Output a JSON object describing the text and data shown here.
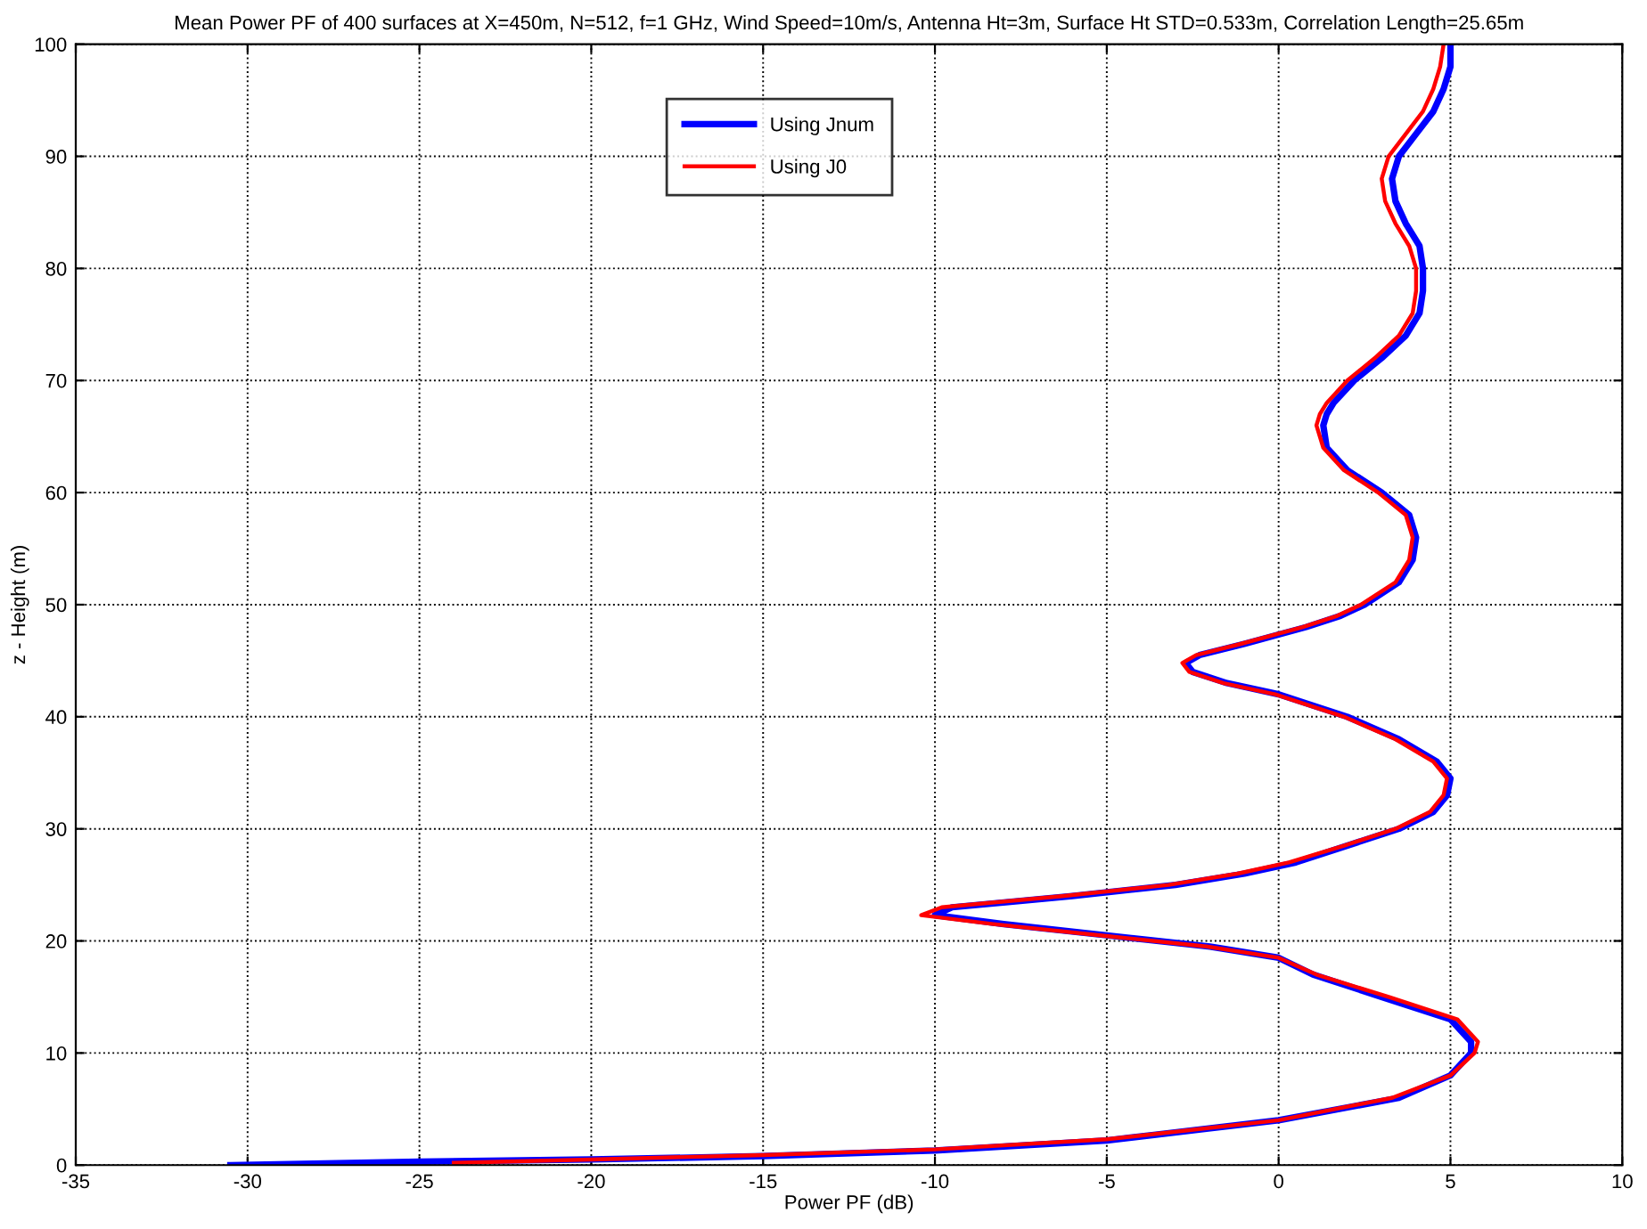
{
  "chart_data": {
    "type": "line",
    "title": "Mean Power PF of 400 surfaces at X=450m, N=512, f=1 GHz, Wind Speed=10m/s, Antenna Ht=3m, Surface Ht STD=0.533m, Correlation Length=25.65m",
    "xlabel": "Power PF (dB)",
    "ylabel": "z - Height (m)",
    "xlim": [
      -35,
      10
    ],
    "ylim": [
      0,
      100
    ],
    "xticks": [
      -35,
      -30,
      -25,
      -20,
      -15,
      -10,
      -5,
      0,
      5,
      10
    ],
    "yticks": [
      0,
      10,
      20,
      30,
      40,
      50,
      60,
      70,
      80,
      90,
      100
    ],
    "grid": true,
    "legend": "top",
    "line_style": "solid",
    "marker": "none",
    "series": [
      {
        "name": "Using Jnum",
        "color": "#0000ff",
        "x": [
          -30.5,
          -25,
          -20,
          -15,
          -10,
          -5,
          0,
          3.5,
          5,
          5.6,
          5.6,
          5,
          3,
          1,
          0,
          -2,
          -5,
          -8,
          -10,
          -9.5,
          -6,
          -3,
          -1,
          0.5,
          2,
          3.5,
          4.5,
          4.9,
          5,
          4.6,
          3.5,
          2,
          0,
          -1.5,
          -2.5,
          -2.7,
          -2.3,
          -1,
          0.8,
          1.8,
          2.5,
          3.5,
          3.9,
          4,
          3.8,
          3,
          2,
          1.4,
          1.3,
          1.4,
          1.6,
          2.2,
          3,
          3.7,
          4.1,
          4.2,
          4.2,
          4.1,
          3.7,
          3.4,
          3.3,
          3.5,
          4,
          4.5,
          4.8,
          5,
          5
        ],
        "values": [
          0,
          0.3,
          0.5,
          0.8,
          1.3,
          2.2,
          4,
          6,
          8,
          10,
          11,
          13,
          15,
          17,
          18.5,
          19.5,
          20.5,
          21.5,
          22.3,
          23,
          24,
          25,
          26,
          27,
          28.5,
          30,
          31.5,
          33,
          34.5,
          36,
          38,
          40,
          42,
          43,
          44,
          44.8,
          45.5,
          46.5,
          48,
          49,
          50,
          52,
          54,
          56,
          58,
          60,
          62,
          64,
          66,
          67,
          68,
          70,
          72,
          74,
          76,
          78,
          80,
          82,
          84,
          86,
          88,
          90,
          92,
          94,
          96,
          98,
          100
        ]
      },
      {
        "name": "Using J0",
        "color": "#ff0000",
        "x": [
          -24,
          -20,
          -15,
          -10,
          -5,
          0,
          3.3,
          5,
          5.7,
          5.8,
          5.2,
          3.2,
          1.1,
          0,
          -2.1,
          -5.2,
          -8.3,
          -10.4,
          -9.8,
          -6.3,
          -3.2,
          -1.2,
          0.3,
          1.9,
          3.4,
          4.4,
          4.8,
          4.9,
          4.5,
          3.4,
          1.9,
          -0.1,
          -1.6,
          -2.6,
          -2.8,
          -2.4,
          -1.1,
          0.7,
          1.7,
          2.4,
          3.4,
          3.8,
          3.9,
          3.7,
          2.9,
          1.9,
          1.3,
          1.1,
          1.2,
          1.4,
          2,
          2.8,
          3.5,
          3.9,
          4,
          4,
          3.8,
          3.4,
          3.1,
          3,
          3.2,
          3.7,
          4.2,
          4.5,
          4.7,
          4.8
        ],
        "values": [
          0.2,
          0.5,
          0.9,
          1.4,
          2.3,
          4,
          6,
          8,
          10,
          11,
          13,
          15,
          17,
          18.5,
          19.5,
          20.5,
          21.5,
          22.3,
          23,
          24,
          25,
          26,
          27,
          28.5,
          30,
          31.5,
          33,
          34.5,
          36,
          38,
          40,
          42,
          43,
          44,
          44.8,
          45.5,
          46.5,
          48,
          49,
          50,
          52,
          54,
          56,
          58,
          60,
          62,
          64,
          66,
          67,
          68,
          70,
          72,
          74,
          76,
          78,
          80,
          82,
          84,
          86,
          88,
          90,
          92,
          94,
          96,
          98,
          100
        ]
      }
    ]
  }
}
